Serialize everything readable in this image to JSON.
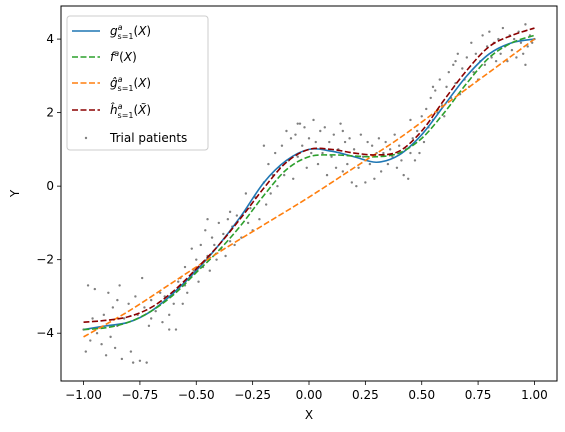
{
  "chart_data": {
    "type": "line",
    "title": "",
    "xlabel": "X",
    "ylabel": "Y",
    "xlim": [
      -1.1,
      1.1
    ],
    "ylim": [
      -5.3,
      4.9
    ],
    "xticks": [
      -1.0,
      -0.75,
      -0.5,
      -0.25,
      0.0,
      0.25,
      0.5,
      0.75,
      1.0
    ],
    "xtick_labels": [
      "−1.00",
      "−0.75",
      "−0.50",
      "−0.25",
      "0.00",
      "0.25",
      "0.50",
      "0.75",
      "1.00"
    ],
    "yticks": [
      -4,
      -2,
      0,
      2,
      4
    ],
    "ytick_labels": [
      "−4",
      "−2",
      "0",
      "2",
      "4"
    ],
    "grid": false,
    "legend_position": "top-left",
    "series": [
      {
        "name": "g_{s=1}^{a}(X)",
        "color": "#1f77b4",
        "style": "solid",
        "x": [
          -1.0,
          -0.9,
          -0.8,
          -0.7,
          -0.6,
          -0.5,
          -0.4,
          -0.3,
          -0.2,
          -0.1,
          0.0,
          0.1,
          0.2,
          0.3,
          0.4,
          0.5,
          0.6,
          0.7,
          0.8,
          0.9,
          1.0
        ],
        "y": [
          -3.9,
          -3.8,
          -3.7,
          -3.4,
          -2.9,
          -2.3,
          -1.6,
          -0.8,
          0.1,
          0.7,
          1.0,
          0.95,
          0.8,
          0.65,
          0.85,
          1.4,
          2.2,
          3.0,
          3.6,
          3.9,
          4.0
        ]
      },
      {
        "name": "f^{a}(X)",
        "color": "#2ca02c",
        "style": "dashed",
        "x": [
          -1.0,
          -0.9,
          -0.8,
          -0.7,
          -0.6,
          -0.5,
          -0.4,
          -0.3,
          -0.2,
          -0.1,
          0.0,
          0.1,
          0.2,
          0.3,
          0.4,
          0.5,
          0.6,
          0.7,
          0.8,
          0.9,
          1.0
        ],
        "y": [
          -3.9,
          -3.85,
          -3.7,
          -3.4,
          -2.95,
          -2.35,
          -1.75,
          -1.05,
          -0.25,
          0.45,
          0.8,
          0.85,
          0.82,
          0.8,
          0.9,
          1.3,
          2.0,
          2.8,
          3.5,
          3.9,
          4.1
        ]
      },
      {
        "name": "ĝ_{s=1}^{a}(X)",
        "color": "#ff7f0e",
        "style": "dashed",
        "x": [
          -1.0,
          -0.8,
          -0.6,
          -0.4,
          -0.2,
          0.0,
          0.2,
          0.4,
          0.6,
          0.8,
          1.0
        ],
        "y": [
          -4.1,
          -3.4,
          -2.6,
          -1.8,
          -1.05,
          -0.3,
          0.5,
          1.3,
          2.2,
          3.1,
          4.0
        ]
      },
      {
        "name": "ĥ_{s=1}^{a}(X̃)",
        "color": "#8b0000",
        "style": "dashed",
        "x": [
          -1.0,
          -0.9,
          -0.8,
          -0.7,
          -0.6,
          -0.5,
          -0.4,
          -0.3,
          -0.2,
          -0.1,
          0.0,
          0.1,
          0.2,
          0.3,
          0.4,
          0.5,
          0.6,
          0.7,
          0.8,
          0.9,
          1.0
        ],
        "y": [
          -3.7,
          -3.65,
          -3.55,
          -3.3,
          -2.85,
          -2.25,
          -1.6,
          -0.85,
          -0.05,
          0.65,
          1.0,
          1.0,
          0.9,
          0.85,
          0.95,
          1.5,
          2.35,
          3.15,
          3.8,
          4.1,
          4.3
        ]
      }
    ],
    "scatter": {
      "name": "Trial patients",
      "color": "#808080",
      "points": [
        [
          -1.0,
          -3.9
        ],
        [
          -0.99,
          -4.5
        ],
        [
          -0.98,
          -2.7
        ],
        [
          -0.97,
          -4.2
        ],
        [
          -0.96,
          -3.6
        ],
        [
          -0.95,
          -2.8
        ],
        [
          -0.94,
          -4.0
        ],
        [
          -0.92,
          -4.3
        ],
        [
          -0.91,
          -3.5
        ],
        [
          -0.9,
          -4.6
        ],
        [
          -0.89,
          -2.9
        ],
        [
          -0.88,
          -4.1
        ],
        [
          -0.87,
          -3.3
        ],
        [
          -0.86,
          -4.4
        ],
        [
          -0.85,
          -3.8
        ],
        [
          -0.84,
          -2.7
        ],
        [
          -0.83,
          -4.7
        ],
        [
          -0.82,
          -3.6
        ],
        [
          -0.8,
          -3.2
        ],
        [
          -0.79,
          -4.5
        ],
        [
          -0.78,
          -4.8
        ],
        [
          -0.77,
          -3.0
        ],
        [
          -0.76,
          -3.5
        ],
        [
          -0.75,
          -4.75
        ],
        [
          -0.74,
          -2.5
        ],
        [
          -0.73,
          -3.3
        ],
        [
          -0.72,
          -4.8
        ],
        [
          -0.71,
          -3.8
        ],
        [
          -0.7,
          -3.1
        ],
        [
          -0.68,
          -3.4
        ],
        [
          -0.66,
          -2.9
        ],
        [
          -0.65,
          -3.7
        ],
        [
          -0.64,
          -3.0
        ],
        [
          -0.62,
          -3.5
        ],
        [
          -0.6,
          -3.2
        ],
        [
          -0.59,
          -3.9
        ],
        [
          -0.58,
          -2.6
        ],
        [
          -0.57,
          -2.5
        ],
        [
          -0.56,
          -3.2
        ],
        [
          -0.55,
          -2.2
        ],
        [
          -0.54,
          -2.9
        ],
        [
          -0.53,
          -2.5
        ],
        [
          -0.52,
          -1.7
        ],
        [
          -0.51,
          -2.3
        ],
        [
          -0.5,
          -2.0
        ],
        [
          -0.49,
          -2.6
        ],
        [
          -0.48,
          -1.6
        ],
        [
          -0.47,
          -2.2
        ],
        [
          -0.46,
          -1.2
        ],
        [
          -0.45,
          -1.9
        ],
        [
          -0.44,
          -2.3
        ],
        [
          -0.43,
          -1.4
        ],
        [
          -0.42,
          -1.6
        ],
        [
          -0.41,
          -2.0
        ],
        [
          -0.4,
          -1.0
        ],
        [
          -0.39,
          -1.7
        ],
        [
          -0.38,
          -1.3
        ],
        [
          -0.37,
          -1.9
        ],
        [
          -0.36,
          -0.9
        ],
        [
          -0.35,
          -1.5
        ],
        [
          -0.34,
          -1.1
        ],
        [
          -0.33,
          -1.6
        ],
        [
          -0.32,
          -0.8
        ],
        [
          -0.3,
          -1.4
        ],
        [
          -0.28,
          -0.2
        ],
        [
          -0.27,
          -1.0
        ],
        [
          -0.26,
          -0.6
        ],
        [
          -0.25,
          -1.2
        ],
        [
          -0.24,
          -0.3
        ],
        [
          -0.22,
          -0.9
        ],
        [
          -0.2,
          0.1
        ],
        [
          -0.19,
          -0.5
        ],
        [
          -0.18,
          0.6
        ],
        [
          -0.17,
          -0.2
        ],
        [
          -0.16,
          0.3
        ],
        [
          -0.15,
          0.9
        ],
        [
          -0.14,
          0.0
        ],
        [
          -0.13,
          0.5
        ],
        [
          -0.12,
          1.1
        ],
        [
          -0.11,
          0.3
        ],
        [
          -0.1,
          1.5
        ],
        [
          -0.09,
          0.7
        ],
        [
          -0.08,
          1.3
        ],
        [
          -0.07,
          0.2
        ],
        [
          -0.06,
          1.4
        ],
        [
          -0.05,
          0.8
        ],
        [
          -0.04,
          1.7
        ],
        [
          -0.03,
          1.1
        ],
        [
          -0.02,
          1.6
        ],
        [
          -0.01,
          0.5
        ],
        [
          0.0,
          1.3
        ],
        [
          0.01,
          0.9
        ],
        [
          0.02,
          1.8
        ],
        [
          0.03,
          1.2
        ],
        [
          0.04,
          0.6
        ],
        [
          0.05,
          1.5
        ],
        [
          0.06,
          0.9
        ],
        [
          0.07,
          1.6
        ],
        [
          0.08,
          0.3
        ],
        [
          0.09,
          1.2
        ],
        [
          0.1,
          0.8
        ],
        [
          0.11,
          1.4
        ],
        [
          0.12,
          0.5
        ],
        [
          0.13,
          1.0
        ],
        [
          0.14,
          1.7
        ],
        [
          0.15,
          0.4
        ],
        [
          0.16,
          1.2
        ],
        [
          0.17,
          0.6
        ],
        [
          0.18,
          1.3
        ],
        [
          0.19,
          0.1
        ],
        [
          0.2,
          1.0
        ],
        [
          0.21,
          0.0
        ],
        [
          0.22,
          0.5
        ],
        [
          0.23,
          1.4
        ],
        [
          0.24,
          0.8
        ],
        [
          0.25,
          0.1
        ],
        [
          0.26,
          1.2
        ],
        [
          0.27,
          0.6
        ],
        [
          0.28,
          1.1
        ],
        [
          0.29,
          0.2
        ],
        [
          0.3,
          0.9
        ],
        [
          0.31,
          1.3
        ],
        [
          0.32,
          0.4
        ],
        [
          0.33,
          0.9
        ],
        [
          0.34,
          1.2
        ],
        [
          0.35,
          0.6
        ],
        [
          0.36,
          1.0
        ],
        [
          0.37,
          0.8
        ],
        [
          0.38,
          1.4
        ],
        [
          0.39,
          0.5
        ],
        [
          0.4,
          1.1
        ],
        [
          0.41,
          0.7
        ],
        [
          0.42,
          0.3
        ],
        [
          0.43,
          1.0
        ],
        [
          0.44,
          0.2
        ],
        [
          0.45,
          0.9
        ],
        [
          0.46,
          1.3
        ],
        [
          0.47,
          0.7
        ],
        [
          0.48,
          1.5
        ],
        [
          0.49,
          0.9
        ],
        [
          0.5,
          1.9
        ],
        [
          0.51,
          1.2
        ],
        [
          0.52,
          2.1
        ],
        [
          0.53,
          1.6
        ],
        [
          0.54,
          2.4
        ],
        [
          0.55,
          1.8
        ],
        [
          0.56,
          2.6
        ],
        [
          0.57,
          2.0
        ],
        [
          0.58,
          2.9
        ],
        [
          0.59,
          2.2
        ],
        [
          0.6,
          1.9
        ],
        [
          0.61,
          2.7
        ],
        [
          0.62,
          3.1
        ],
        [
          0.63,
          2.4
        ],
        [
          0.64,
          3.3
        ],
        [
          0.65,
          2.8
        ],
        [
          0.66,
          3.6
        ],
        [
          0.67,
          2.5
        ],
        [
          0.68,
          3.2
        ],
        [
          0.69,
          2.9
        ],
        [
          0.7,
          3.5
        ],
        [
          0.71,
          2.7
        ],
        [
          0.72,
          3.9
        ],
        [
          0.73,
          3.1
        ],
        [
          0.74,
          3.6
        ],
        [
          0.75,
          2.9
        ],
        [
          0.76,
          3.4
        ],
        [
          0.77,
          4.1
        ],
        [
          0.78,
          3.3
        ],
        [
          0.79,
          3.8
        ],
        [
          0.8,
          4.2
        ],
        [
          0.81,
          3.5
        ],
        [
          0.82,
          3.9
        ],
        [
          0.83,
          3.4
        ],
        [
          0.84,
          4.0
        ],
        [
          0.85,
          3.6
        ],
        [
          0.86,
          4.3
        ],
        [
          0.87,
          3.8
        ],
        [
          0.88,
          3.4
        ],
        [
          0.89,
          4.1
        ],
        [
          0.9,
          3.7
        ],
        [
          0.91,
          4.0
        ],
        [
          0.92,
          3.5
        ],
        [
          0.93,
          4.2
        ],
        [
          0.94,
          3.9
        ],
        [
          0.95,
          3.6
        ],
        [
          0.96,
          4.4
        ],
        [
          0.97,
          3.8
        ],
        [
          0.98,
          4.1
        ],
        [
          0.99,
          3.9
        ],
        [
          1.0,
          4.0
        ],
        [
          0.96,
          3.3
        ],
        [
          -0.2,
          1.1
        ],
        [
          -0.05,
          1.7
        ],
        [
          0.15,
          1.5
        ],
        [
          0.45,
          1.8
        ],
        [
          0.55,
          2.7
        ],
        [
          0.65,
          3.4
        ],
        [
          -0.45,
          -0.9
        ],
        [
          -0.35,
          -0.7
        ],
        [
          -0.55,
          -2.7
        ],
        [
          -0.62,
          -3.9
        ],
        [
          -0.7,
          -3.6
        ],
        [
          -0.85,
          -3.1
        ]
      ]
    }
  }
}
